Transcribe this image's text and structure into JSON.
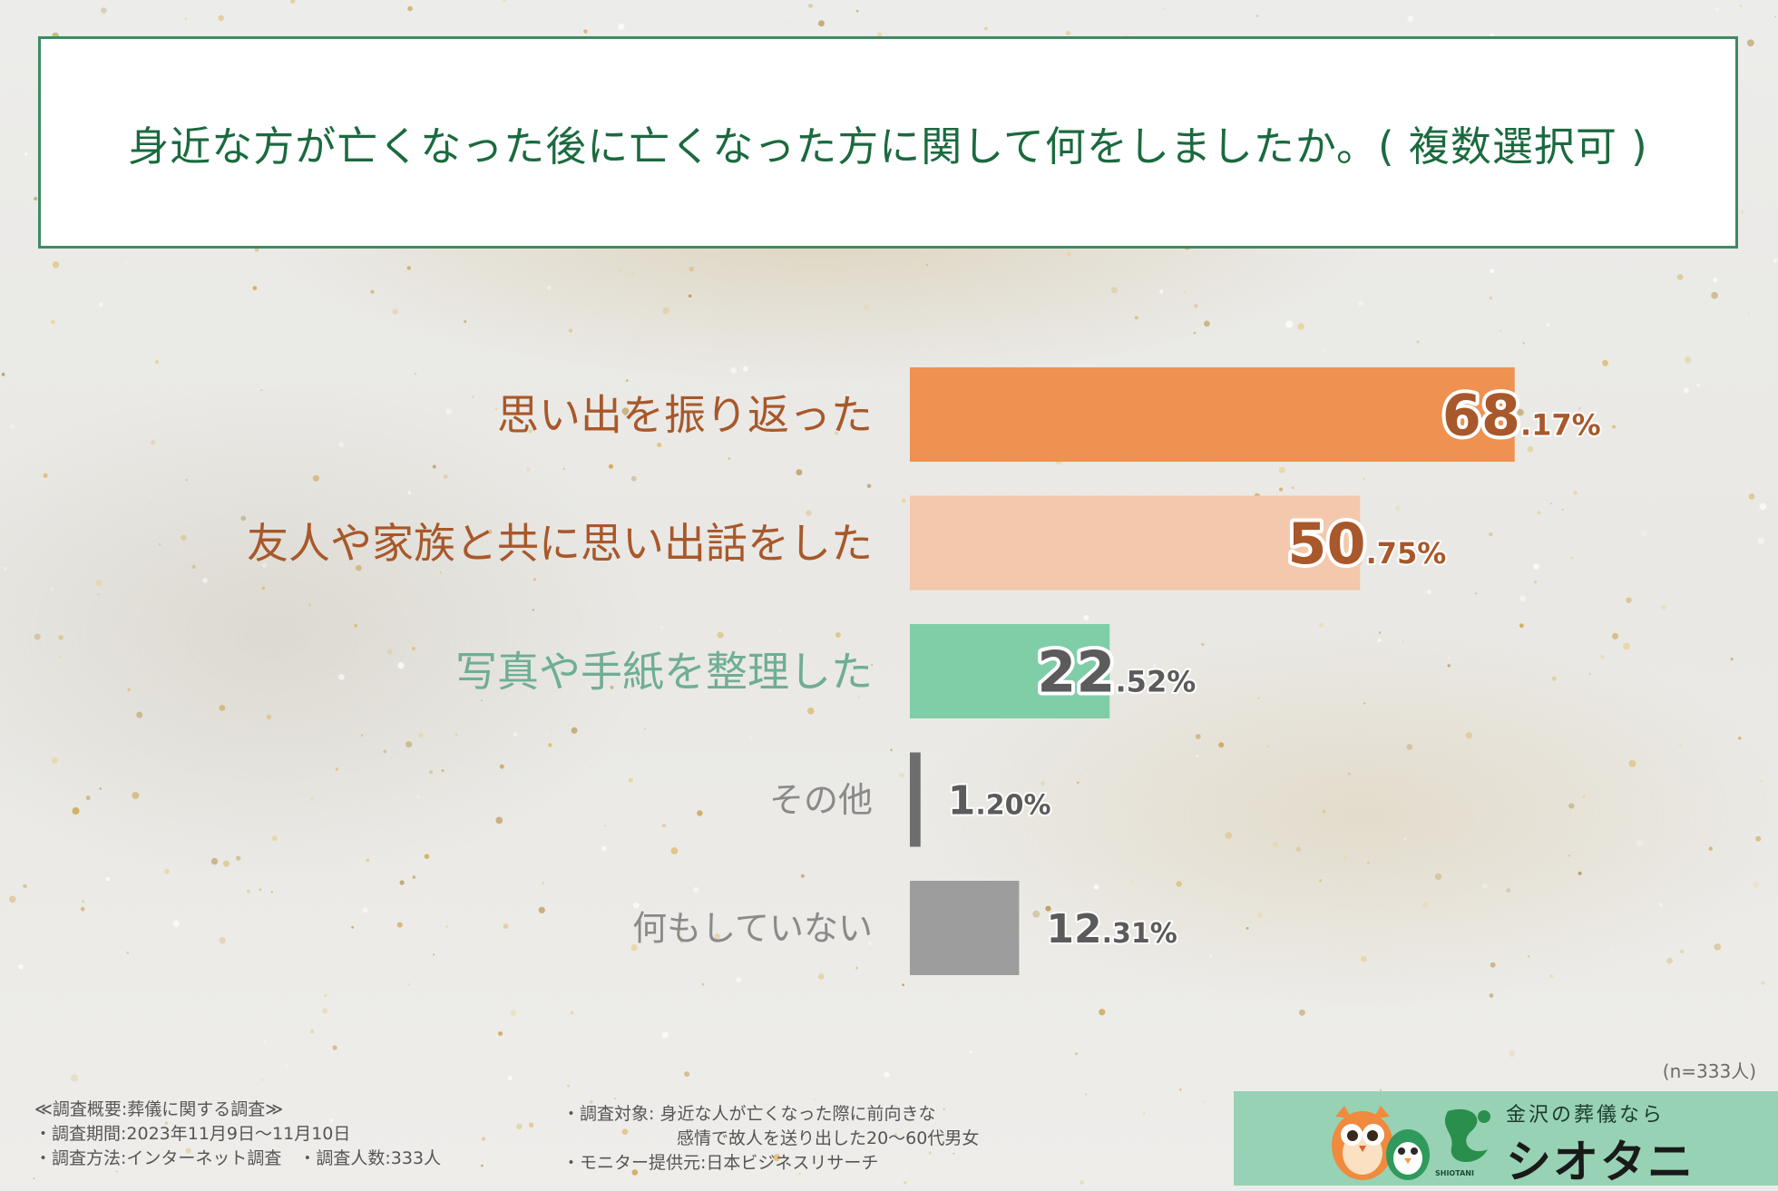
{
  "title": "身近な方が亡くなった後に亡くなった方に関して何をしましたか。( 複数選択可 )",
  "chart_data": {
    "type": "bar",
    "orientation": "horizontal",
    "categories": [
      "思い出を振り返った",
      "友人や家族と共に思い出話をした",
      "写真や手紙を整理した",
      "その他",
      "何もしていない"
    ],
    "values": [
      68.17,
      50.75,
      22.52,
      1.2,
      12.31
    ],
    "value_labels": [
      {
        "int": "68",
        "dec": ".17%"
      },
      {
        "int": "50",
        "dec": ".75%"
      },
      {
        "int": "22",
        "dec": ".52%"
      },
      {
        "int": "1",
        "dec": ".20%"
      },
      {
        "int": "12",
        "dec": ".31%"
      }
    ],
    "bar_colors": [
      "#ee9151",
      "#f4c8ac",
      "#7fcea8",
      "#6e6e6e",
      "#9d9d9d"
    ],
    "label_colors": [
      "#a8582a",
      "#a8582a",
      "#6fae94",
      "#8a8a8a",
      "#8a8a8a"
    ],
    "value_colors": [
      "#a8582a",
      "#a8582a",
      "#5b5b5b",
      "#5b5b5b",
      "#5b5b5b"
    ],
    "xlim": [
      0,
      100
    ],
    "grid": false,
    "legend": "none"
  },
  "sample_size": "(n=333人)",
  "footer": {
    "left": [
      "≪調査概要:葬儀に関する調査≫",
      "・調査期間:2023年11月9日～11月10日",
      "・調査方法:インターネット調査　・調査人数:333人"
    ],
    "mid": [
      "・調査対象: 身近な人が亡くなった際に前向きな",
      "感情で故人を送り出した20～60代男女",
      "・モニター提供元:日本ビジネスリサーチ"
    ]
  },
  "brand": {
    "tagline": "金沢の葬儀なら",
    "name": "シオタニ",
    "sub": "SHIOTANI",
    "colors": {
      "panel": "#97d2b4",
      "logo": "#2a8f4c",
      "owl": "#f08a3c"
    }
  }
}
